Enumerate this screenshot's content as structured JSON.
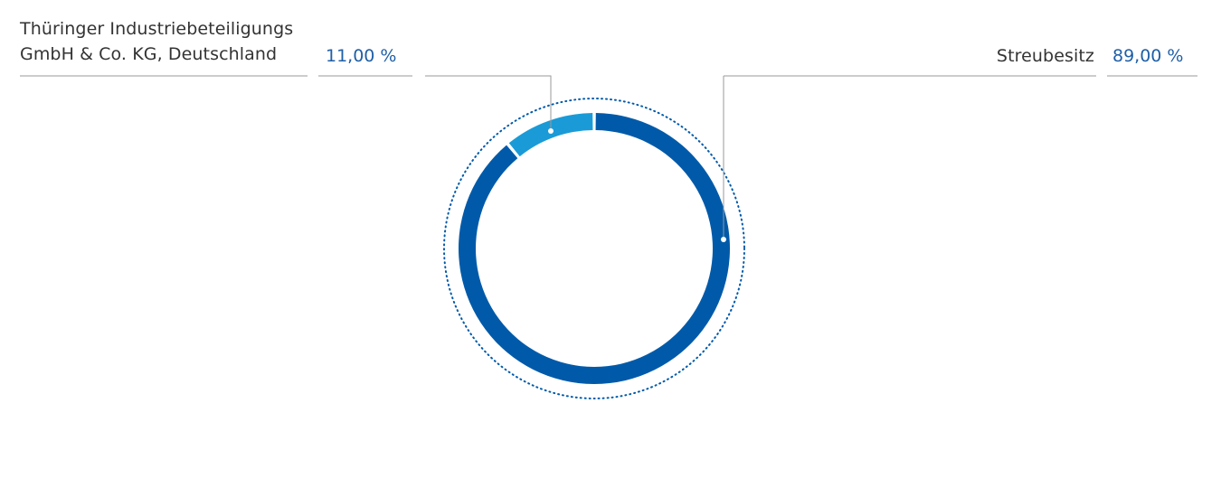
{
  "chart_data": {
    "type": "pie",
    "variant": "donut",
    "categories": [
      "Thüringer Industriebeteiligungs GmbH & Co. KG, Deutschland",
      "Streubesitz"
    ],
    "series": [
      {
        "values": [
          11.0,
          89.0
        ]
      }
    ],
    "slices": [
      {
        "label_line1": "Thüringer Industriebeteiligungs",
        "label_line2": "GmbH & Co. KG, Deutschland",
        "value": 11.0,
        "value_label": "11,00 %",
        "color": "#1a9bd7"
      },
      {
        "label_line1": "Streubesitz",
        "value": 89.0,
        "value_label": "89,00 %",
        "color": "#005aa9"
      }
    ],
    "legend": "callouts-top"
  },
  "colors": {
    "text": "#333333",
    "value": "#1f5fa7",
    "rule": "#9a9a9a",
    "dotted_ring": "#005aa9"
  }
}
